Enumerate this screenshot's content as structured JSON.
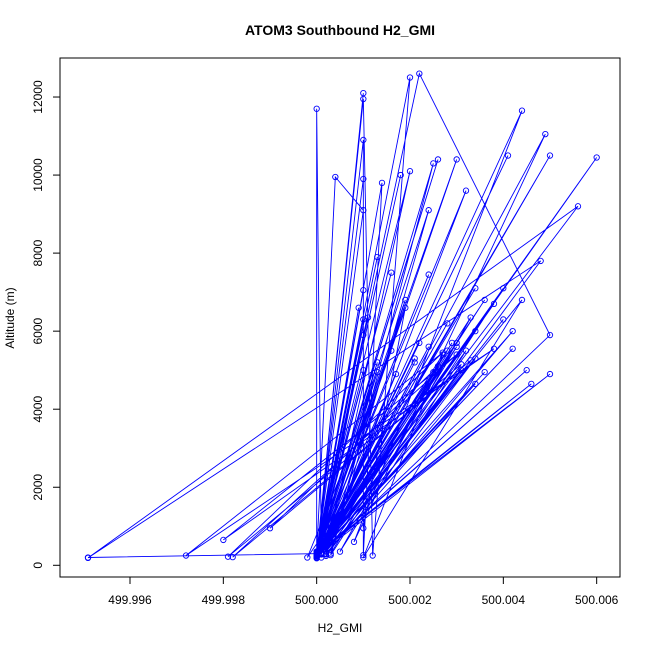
{
  "chart_data": {
    "type": "line",
    "title": "ATOM3 Southbound H2_GMI",
    "xlabel": "H2_GMI",
    "ylabel": "Altitude (m)",
    "xlim": [
      499.9945,
      500.0065
    ],
    "ylim": [
      -300,
      13000
    ],
    "xticks": [
      499.996,
      499.998,
      500.0,
      500.002,
      500.004,
      500.006
    ],
    "xtick_labels": [
      "499.996",
      "499.998",
      "500.000",
      "500.002",
      "500.004",
      "500.006"
    ],
    "yticks": [
      0,
      2000,
      4000,
      6000,
      8000,
      10000,
      12000
    ],
    "ytick_labels": [
      "0",
      "2000",
      "4000",
      "6000",
      "8000",
      "10000",
      "12000"
    ],
    "grid": false,
    "series_color": "#0000ff",
    "series": [
      {
        "points": [
          [
            499.9951,
            200
          ],
          [
            500.0001,
            300
          ],
          [
            500.0,
            11700
          ],
          [
            500.0,
            200
          ],
          [
            500.001,
            12100
          ],
          [
            500.0,
            250
          ],
          [
            500.001,
            11950
          ],
          [
            500.0012,
            250
          ],
          [
            500.002,
            12500
          ],
          [
            500.0,
            300
          ],
          [
            500.0022,
            12600
          ],
          [
            500.005,
            5900
          ],
          [
            500.0,
            200
          ],
          [
            500.0044,
            11650
          ],
          [
            500.0008,
            600
          ],
          [
            500.0049,
            11050
          ],
          [
            500.0001,
            400
          ],
          [
            500.005,
            10500
          ],
          [
            500.0,
            280
          ],
          [
            500.006,
            10450
          ],
          [
            500.0,
            350
          ],
          [
            500.0056,
            9200
          ],
          [
            499.9951,
            190
          ],
          [
            500.0048,
            7800
          ],
          [
            500.0002,
            350
          ],
          [
            500.0042,
            6000
          ],
          [
            500.0,
            300
          ],
          [
            500.0036,
            6800
          ],
          [
            500.0001,
            320
          ],
          [
            500.003,
            10400
          ],
          [
            500.0,
            250
          ],
          [
            500.001,
            10900
          ],
          [
            500.001,
            260
          ],
          [
            500.0014,
            9800
          ],
          [
            500.0,
            300
          ],
          [
            500.0026,
            10400
          ],
          [
            500.0,
            350
          ],
          [
            500.002,
            10100
          ],
          [
            500.0002,
            280
          ],
          [
            500.0032,
            9600
          ],
          [
            500.0,
            320
          ],
          [
            500.001,
            9900
          ],
          [
            500.0,
            300
          ],
          [
            500.0004,
            9950
          ],
          [
            500.001,
            9100
          ],
          [
            500.0,
            230
          ],
          [
            500.0018,
            10000
          ],
          [
            500.0,
            260
          ],
          [
            500.0034,
            6000
          ],
          [
            500.0,
            300
          ],
          [
            500.003,
            5600
          ],
          [
            500.0003,
            300
          ],
          [
            500.0025,
            10300
          ],
          [
            500.0,
            240
          ],
          [
            500.0041,
            10500
          ],
          [
            500.0,
            250
          ],
          [
            500.0024,
            9100
          ],
          [
            500.0003,
            260
          ],
          [
            500.004,
            7100
          ],
          [
            500.0,
            330
          ],
          [
            500.0038,
            6700
          ],
          [
            500.0,
            240
          ],
          [
            500.004,
            6300
          ],
          [
            500.0,
            230
          ],
          [
            500.0033,
            6350
          ],
          [
            500.0005,
            350
          ],
          [
            500.0032,
            5500
          ],
          [
            500.0,
            300
          ],
          [
            500.003,
            5700
          ],
          [
            500.0002,
            240
          ],
          [
            500.0034,
            5300
          ],
          [
            500.0,
            230
          ],
          [
            500.005,
            4900
          ],
          [
            500.0,
            300
          ],
          [
            500.0046,
            4650
          ],
          [
            500.0,
            260
          ],
          [
            500.0045,
            5000
          ],
          [
            500.0,
            280
          ],
          [
            500.0042,
            5550
          ],
          [
            500.0,
            300
          ],
          [
            500.0031,
            5000
          ],
          [
            500.0001,
            200
          ],
          [
            500.0028,
            5500
          ],
          [
            500.0,
            260
          ],
          [
            500.0036,
            4950
          ],
          [
            500.0,
            250
          ],
          [
            500.0034,
            4650
          ],
          [
            500.0002,
            300
          ],
          [
            500.0019,
            6800
          ],
          [
            500.0,
            250
          ],
          [
            500.001,
            6300
          ],
          [
            500.0,
            300
          ],
          [
            500.0013,
            7900
          ],
          [
            500.0,
            350
          ],
          [
            500.0016,
            7500
          ],
          [
            500.0,
            280
          ],
          [
            500.0019,
            6600
          ],
          [
            500.001,
            950
          ],
          [
            500.001,
            7050
          ],
          [
            500.0,
            250
          ],
          [
            500.0009,
            6600
          ],
          [
            500.0,
            300
          ],
          [
            500.0013,
            5200
          ],
          [
            500.0001,
            280
          ],
          [
            500.0017,
            4900
          ],
          [
            500.0,
            260
          ],
          [
            500.0022,
            5700
          ],
          [
            500.0,
            300
          ],
          [
            500.0024,
            7450
          ],
          [
            500.0,
            280
          ],
          [
            500.0028,
            6200
          ],
          [
            500.0,
            250
          ],
          [
            500.0029,
            5700
          ],
          [
            500.0,
            320
          ],
          [
            500.0025,
            4950
          ],
          [
            500.0,
            260
          ],
          [
            500.0021,
            5300
          ],
          [
            500.0,
            300
          ],
          [
            500.0013,
            4950
          ],
          [
            500.0001,
            280
          ],
          [
            500.001,
            5900
          ],
          [
            500.001,
            5000
          ],
          [
            500.0,
            300
          ],
          [
            500.0011,
            6350
          ],
          [
            500.0,
            280
          ],
          [
            500.0016,
            5500
          ],
          [
            499.9998,
            200
          ],
          [
            500.0026,
            5100
          ],
          [
            499.999,
            950
          ],
          [
            500.0033,
            5250
          ],
          [
            499.9982,
            210
          ],
          [
            500.003,
            5400
          ],
          [
            499.998,
            650
          ],
          [
            500.0038,
            5550
          ],
          [
            499.9972,
            250
          ],
          [
            500.0027,
            5450
          ],
          [
            499.9981,
            220
          ],
          [
            500.0031,
            5150
          ],
          [
            500.0,
            180
          ],
          [
            500.0024,
            5600
          ],
          [
            500.0,
            250
          ],
          [
            500.0021,
            5200
          ],
          [
            500.0,
            260
          ],
          [
            500.0027,
            5400
          ],
          [
            500.001,
            200
          ],
          [
            500.0044,
            6800
          ],
          [
            500.0,
            300
          ],
          [
            500.0034,
            7100
          ]
        ]
      }
    ]
  }
}
